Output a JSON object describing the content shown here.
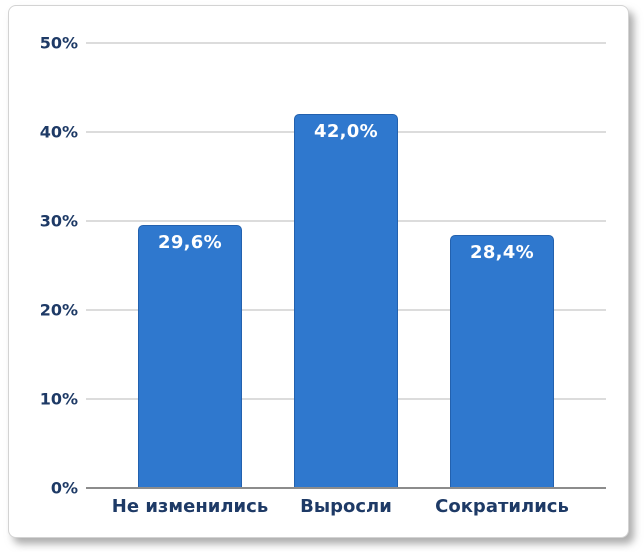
{
  "chart_data": {
    "type": "bar",
    "title": "",
    "categories": [
      "Не изменились",
      "Выросли",
      "Сократились"
    ],
    "values": [
      29.6,
      42.0,
      28.4
    ],
    "value_labels": [
      "29,6%",
      "42,0%",
      "28,4%"
    ],
    "yticks": [
      {
        "value": 0,
        "label": "0%"
      },
      {
        "value": 10,
        "label": "10%"
      },
      {
        "value": 20,
        "label": "20%"
      },
      {
        "value": 30,
        "label": "30%"
      },
      {
        "value": 40,
        "label": "40%"
      },
      {
        "value": 50,
        "label": "50%"
      }
    ],
    "ylim": [
      0,
      50
    ],
    "xlabel": "",
    "ylabel": "",
    "grid": true,
    "legend": false,
    "colors": {
      "bar_fill": "#2F78CE",
      "bar_border": "#2361AE",
      "bar_value_text": "#FFFFFF",
      "axis_label_text": "#1E3A66",
      "gridline": "#DCDCDC",
      "baseline": "#8C8C8C",
      "panel_background": "#FFFFFF",
      "panel_border": "#D3D3D3"
    }
  }
}
